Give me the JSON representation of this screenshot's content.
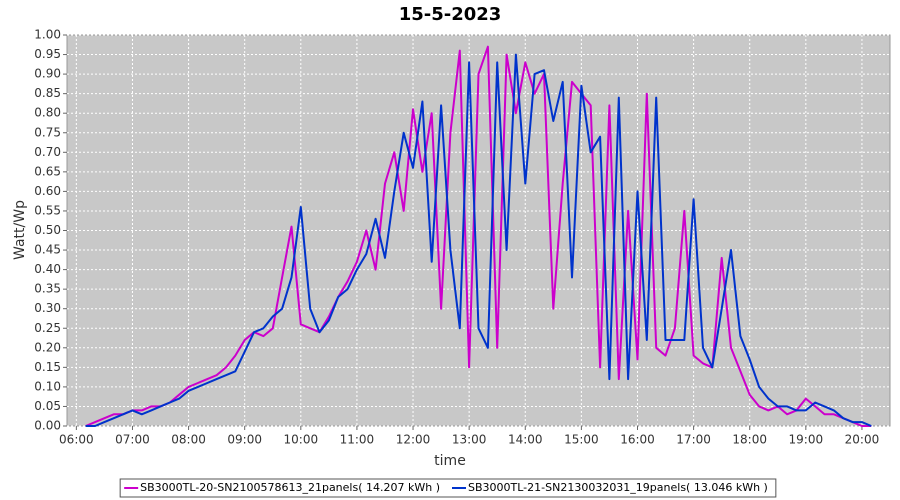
{
  "chart_data": {
    "type": "line",
    "title": "15-5-2023",
    "x_label": "time",
    "y_label": "Watt/Wp",
    "x": [
      "06:10",
      "06:20",
      "06:30",
      "06:40",
      "06:50",
      "07:00",
      "07:10",
      "07:20",
      "07:30",
      "07:40",
      "07:50",
      "08:00",
      "08:10",
      "08:20",
      "08:30",
      "08:40",
      "08:50",
      "09:00",
      "09:10",
      "09:20",
      "09:30",
      "09:40",
      "09:50",
      "10:00",
      "10:10",
      "10:20",
      "10:30",
      "10:40",
      "10:50",
      "11:00",
      "11:10",
      "11:20",
      "11:30",
      "11:40",
      "11:50",
      "12:00",
      "12:10",
      "12:20",
      "12:30",
      "12:40",
      "12:50",
      "13:00",
      "13:10",
      "13:20",
      "13:30",
      "13:40",
      "13:50",
      "14:00",
      "14:10",
      "14:20",
      "14:30",
      "14:40",
      "14:50",
      "15:00",
      "15:10",
      "15:20",
      "15:30",
      "15:40",
      "15:50",
      "16:00",
      "16:10",
      "16:20",
      "16:30",
      "16:40",
      "16:50",
      "17:00",
      "17:10",
      "17:20",
      "17:30",
      "17:40",
      "17:50",
      "18:00",
      "18:10",
      "18:20",
      "18:30",
      "18:40",
      "18:50",
      "19:00",
      "19:10",
      "19:20",
      "19:30",
      "19:40",
      "19:50",
      "20:00",
      "20:10"
    ],
    "series": [
      {
        "name": "SB3000TL-20-SN2100578613_21panels( 14.207 kWh )",
        "color": "#cc00cc",
        "values": [
          0,
          0.01,
          0.02,
          0.03,
          0.03,
          0.04,
          0.04,
          0.05,
          0.05,
          0.06,
          0.08,
          0.1,
          0.11,
          0.12,
          0.13,
          0.15,
          0.18,
          0.22,
          0.24,
          0.23,
          0.25,
          0.38,
          0.51,
          0.26,
          0.25,
          0.24,
          0.28,
          0.33,
          0.37,
          0.42,
          0.5,
          0.4,
          0.62,
          0.7,
          0.55,
          0.81,
          0.65,
          0.8,
          0.3,
          0.75,
          0.96,
          0.15,
          0.9,
          0.97,
          0.2,
          0.95,
          0.8,
          0.93,
          0.85,
          0.9,
          0.3,
          0.62,
          0.88,
          0.85,
          0.82,
          0.15,
          0.82,
          0.12,
          0.55,
          0.17,
          0.85,
          0.2,
          0.18,
          0.25,
          0.55,
          0.18,
          0.16,
          0.15,
          0.43,
          0.2,
          0.14,
          0.08,
          0.05,
          0.04,
          0.05,
          0.03,
          0.04,
          0.07,
          0.05,
          0.03,
          0.03,
          0.02,
          0.01,
          0,
          0
        ]
      },
      {
        "name": "SB3000TL-21-SN2130032031_19panels( 13.046 kWh )",
        "color": "#0033cc",
        "values": [
          0,
          0,
          0.01,
          0.02,
          0.03,
          0.04,
          0.03,
          0.04,
          0.05,
          0.06,
          0.07,
          0.09,
          0.1,
          0.11,
          0.12,
          0.13,
          0.14,
          0.19,
          0.24,
          0.25,
          0.28,
          0.3,
          0.38,
          0.56,
          0.3,
          0.24,
          0.27,
          0.33,
          0.35,
          0.4,
          0.44,
          0.53,
          0.43,
          0.6,
          0.75,
          0.66,
          0.83,
          0.42,
          0.82,
          0.45,
          0.25,
          0.93,
          0.25,
          0.2,
          0.93,
          0.45,
          0.95,
          0.62,
          0.9,
          0.91,
          0.78,
          0.88,
          0.38,
          0.87,
          0.7,
          0.74,
          0.12,
          0.84,
          0.12,
          0.6,
          0.22,
          0.84,
          0.22,
          0.22,
          0.22,
          0.58,
          0.2,
          0.15,
          0.3,
          0.45,
          0.23,
          0.17,
          0.1,
          0.07,
          0.05,
          0.05,
          0.04,
          0.04,
          0.06,
          0.05,
          0.04,
          0.02,
          0.01,
          0.01,
          0
        ]
      }
    ],
    "xlim": [
      "05:50",
      "20:30"
    ],
    "xticks": [
      "06:00",
      "07:00",
      "08:00",
      "09:00",
      "10:00",
      "11:00",
      "12:00",
      "13:00",
      "14:00",
      "15:00",
      "16:00",
      "17:00",
      "18:00",
      "19:00",
      "20:00"
    ],
    "ylim": [
      0,
      1
    ],
    "yticks": [
      {
        "value": 0,
        "label": "0.00"
      },
      {
        "value": 0.05,
        "label": "0.05"
      },
      {
        "value": 0.1,
        "label": "0.10"
      },
      {
        "value": 0.15,
        "label": "0.15"
      },
      {
        "value": 0.2,
        "label": "0.20"
      },
      {
        "value": 0.25,
        "label": "0.25"
      },
      {
        "value": 0.3,
        "label": "0.30"
      },
      {
        "value": 0.35,
        "label": "0.35"
      },
      {
        "value": 0.4,
        "label": "0.40"
      },
      {
        "value": 0.45,
        "label": "0.45"
      },
      {
        "value": 0.5,
        "label": "0.50"
      },
      {
        "value": 0.55,
        "label": "0.55"
      },
      {
        "value": 0.6,
        "label": "0.60"
      },
      {
        "value": 0.65,
        "label": "0.65"
      },
      {
        "value": 0.7,
        "label": "0.70"
      },
      {
        "value": 0.75,
        "label": "0.75"
      },
      {
        "value": 0.8,
        "label": "0.80"
      },
      {
        "value": 0.85,
        "label": "0.85"
      },
      {
        "value": 0.9,
        "label": "0.90"
      },
      {
        "value": 0.95,
        "label": "0.95"
      },
      {
        "value": 1,
        "label": "1.00"
      }
    ],
    "grid": true,
    "legend": "bottom"
  }
}
